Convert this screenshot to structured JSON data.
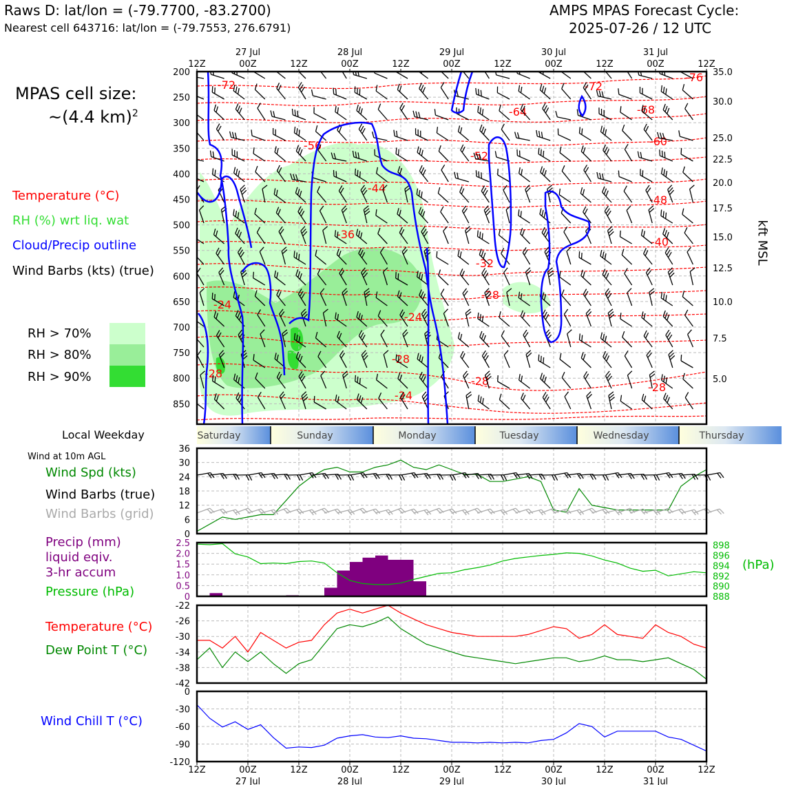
{
  "header": {
    "title_left": "Raws D: lat/lon = (-79.7700, -83.2700)",
    "subtitle_left": "Nearest cell 643716: lat/lon = (-79.7553, 276.6791)",
    "title_right_1": "AMPS MPAS Forecast Cycle:",
    "title_right_2": "2025-07-26 / 12 UTC"
  },
  "sidebar": {
    "cell_size_1": "MPAS cell size:",
    "cell_size_2": "~(4.4 km)",
    "cell_size_sup": "2",
    "legend": [
      {
        "label": "Temperature (°C)",
        "color": "#ff0000"
      },
      {
        "label": "RH (%) wrt liq. wat",
        "color": "#33dd33"
      },
      {
        "label": "Cloud/Precip outline",
        "color": "#0000ff"
      },
      {
        "label": "Wind Barbs (kts) (true)",
        "color": "#000000"
      }
    ],
    "rh_legend": [
      {
        "label": "RH > 70%",
        "color": "#ccffcc"
      },
      {
        "label": "RH > 80%",
        "color": "#99ee99"
      },
      {
        "label": "RH > 90%",
        "color": "#33dd33"
      }
    ],
    "weekday_label": "Local Weekday",
    "wind10m_title": "Wind at 10m AGL",
    "wind_spd_label": "Wind Spd (kts)",
    "wind_barbs_true_label": "Wind Barbs (true)",
    "wind_barbs_grid_label": "Wind Barbs (grid)",
    "precip_label_1": "Precip (mm)",
    "precip_label_2": "liquid eqiv.",
    "precip_label_3": "3-hr accum",
    "pressure_label": "Pressure (hPa)",
    "hpa_label": "(hPa)",
    "temp_label": "Temperature (°C)",
    "dewpoint_label": "Dew Point T (°C)",
    "windchill_label": "Wind Chill T (°C)",
    "kft_label": "kft MSL"
  },
  "weekdays": [
    "Saturday",
    "Sunday",
    "Monday",
    "Tuesday",
    "Wednesday",
    "Thursday"
  ],
  "time_axis": {
    "ticks": [
      "12Z",
      "00Z",
      "12Z",
      "00Z",
      "12Z",
      "00Z",
      "12Z",
      "00Z",
      "12Z",
      "00Z",
      "12Z"
    ],
    "dates": [
      "27 Jul",
      "28 Jul",
      "29 Jul",
      "30 Jul",
      "31 Jul"
    ]
  },
  "chart_data": [
    {
      "type": "heatmap",
      "name": "vertical cross-section (pressure-time)",
      "y_axis_left_hpa": [
        "200",
        "250",
        "300",
        "350",
        "400",
        "450",
        "500",
        "550",
        "600",
        "650",
        "700",
        "750",
        "800",
        "850"
      ],
      "y_axis_right_kft": [
        "35.0",
        "30.0",
        "25.0",
        "22.5",
        "20.0",
        "17.5",
        "15.0",
        "12.5",
        "10.0",
        "7.5",
        "5.0"
      ],
      "temperature_contour_labels": [
        "-72",
        "-72",
        "-76",
        "-64",
        "-68",
        "-60",
        "-56",
        "-52",
        "-44",
        "-48",
        "-40",
        "-36",
        "-32",
        "-28",
        "-24",
        "-24",
        "-28",
        "-28",
        "-28",
        "-24",
        "-28"
      ],
      "ylim_hpa": [
        200,
        890
      ]
    },
    {
      "type": "line",
      "name": "10m wind speed",
      "ylim": [
        0,
        36
      ],
      "yticks": [
        "0",
        "6",
        "12",
        "18",
        "24",
        "30",
        "36"
      ],
      "x_hours": [
        0,
        6,
        9,
        12,
        15,
        18,
        21,
        24,
        27,
        30,
        33,
        36,
        39,
        42,
        45,
        48,
        51,
        54,
        57,
        60,
        63,
        66,
        69,
        72,
        75,
        78,
        81,
        84,
        87,
        90,
        93,
        96,
        99,
        102,
        105,
        108,
        111,
        114,
        117,
        120
      ],
      "values": [
        1,
        7,
        6,
        7,
        8,
        8,
        14,
        20,
        24,
        27,
        28,
        26,
        26,
        28,
        29,
        31,
        28,
        27,
        29,
        27,
        25,
        25,
        22,
        22,
        23,
        24,
        22,
        10,
        9,
        19,
        12,
        11,
        10,
        10,
        10,
        10,
        10,
        20,
        24,
        27
      ]
    },
    {
      "type": "bar",
      "name": "3-hr precip (mm) and pressure (hPa)",
      "precip_ylim": [
        0,
        2.5
      ],
      "precip_yticks": [
        "0",
        "0.5",
        "1.0",
        "1.5",
        "2.0",
        "2.5"
      ],
      "pressure_yticks": [
        "888",
        "890",
        "892",
        "894",
        "896",
        "898"
      ],
      "precip_x_hours": [
        6,
        24,
        33,
        36,
        39,
        42,
        45,
        48,
        51,
        54
      ],
      "precip_values": [
        0.15,
        0.05,
        0.4,
        1.2,
        1.6,
        1.8,
        1.9,
        1.7,
        1.7,
        0.7
      ],
      "pressure_x_hours": [
        0,
        3,
        6,
        9,
        12,
        15,
        18,
        21,
        24,
        27,
        30,
        33,
        36,
        39,
        42,
        45,
        48,
        51,
        54,
        57,
        60,
        63,
        66,
        69,
        72,
        75,
        78,
        81,
        84,
        87,
        90,
        93,
        96,
        99,
        102,
        105,
        108,
        111,
        114,
        117,
        120
      ],
      "pressure_values": [
        898.2,
        898.1,
        898.3,
        896.3,
        895.7,
        894.4,
        894.5,
        894.4,
        894.8,
        894.9,
        894.5,
        892.6,
        891.1,
        890.5,
        890.3,
        890.3,
        890.6,
        891.3,
        891.9,
        892.5,
        892.6,
        893.2,
        893.6,
        894.1,
        894.9,
        895.4,
        895.7,
        896.0,
        896.2,
        896.5,
        896.4,
        895.9,
        895.1,
        894.5,
        893.5,
        892.9,
        893.1,
        892.0,
        892.4,
        892.8,
        892.6
      ],
      "pressure_ylim": [
        888,
        898.5
      ]
    },
    {
      "type": "line",
      "name": "temperature and dew point",
      "ylim": [
        -42,
        -22
      ],
      "yticks": [
        "-22",
        "-26",
        "-30",
        "-34",
        "-38",
        "-42"
      ],
      "x_hours": [
        0,
        3,
        6,
        9,
        12,
        15,
        18,
        21,
        24,
        27,
        30,
        33,
        36,
        39,
        42,
        45,
        48,
        51,
        54,
        57,
        60,
        63,
        66,
        69,
        72,
        75,
        78,
        81,
        84,
        87,
        90,
        93,
        96,
        99,
        102,
        105,
        108,
        111,
        114,
        117,
        120
      ],
      "series": [
        {
          "name": "Temperature",
          "color": "#ff0000",
          "values": [
            -31,
            -31,
            -33,
            -30,
            -34,
            -29,
            -31,
            -33,
            -31.5,
            -31,
            -27,
            -24,
            -23,
            -24,
            -23,
            -22,
            -24,
            -25.5,
            -27,
            -28,
            -29,
            -29.5,
            -30,
            -30,
            -30,
            -30,
            -29.5,
            -28.5,
            -27.5,
            -28,
            -30.5,
            -29.5,
            -27,
            -29.5,
            -30,
            -30.5,
            -27,
            -29,
            -30,
            -32,
            -33
          ]
        },
        {
          "name": "Dew Point",
          "color": "#008800",
          "values": [
            -36,
            -33,
            -38,
            -34,
            -36.5,
            -34,
            -37,
            -39.5,
            -37,
            -36,
            -32,
            -28,
            -27,
            -27.5,
            -26.5,
            -25,
            -28,
            -30,
            -32,
            -33,
            -34,
            -35,
            -35.5,
            -36,
            -36.5,
            -37,
            -36.5,
            -36,
            -35.5,
            -35.5,
            -36.5,
            -36,
            -35,
            -36,
            -36,
            -36.5,
            -36,
            -35.5,
            -37,
            -38.5,
            -41
          ]
        }
      ]
    },
    {
      "type": "line",
      "name": "wind chill",
      "ylim": [
        -120,
        0
      ],
      "yticks": [
        "0",
        "-30",
        "-60",
        "-90",
        "-120"
      ],
      "x_hours": [
        0,
        3,
        6,
        9,
        12,
        15,
        18,
        21,
        24,
        27,
        30,
        33,
        36,
        39,
        42,
        45,
        48,
        51,
        54,
        57,
        60,
        63,
        66,
        69,
        72,
        75,
        78,
        81,
        84,
        87,
        90,
        93,
        96,
        99,
        102,
        105,
        108,
        111,
        114,
        117,
        120
      ],
      "values": [
        -23,
        -46,
        -61,
        -52,
        -65,
        -57,
        -79,
        -97,
        -95,
        -96,
        -92,
        -80,
        -76,
        -74,
        -78,
        -79,
        -76,
        -80,
        -81,
        -84,
        -87,
        -87,
        -88,
        -87,
        -88,
        -87,
        -88,
        -84,
        -82,
        -71,
        -55,
        -60,
        -78,
        -68,
        -68,
        -68,
        -68,
        -78,
        -82,
        -92,
        -102
      ]
    }
  ]
}
